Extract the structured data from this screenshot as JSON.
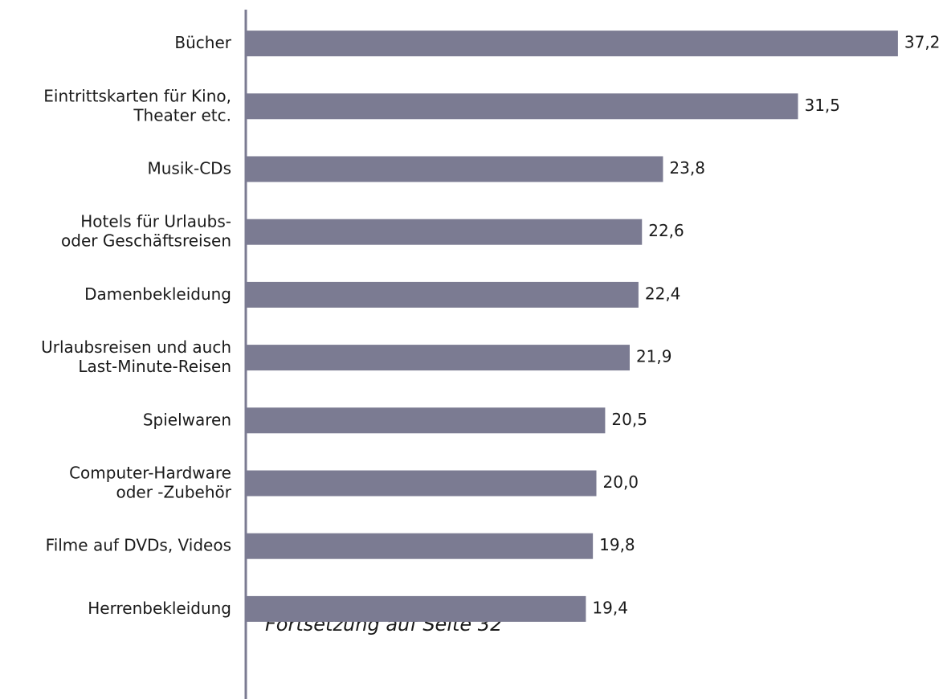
{
  "chart_data": {
    "type": "hbar",
    "categories": [
      "Bücher",
      "Eintrittskarten für Kino,\nTheater etc.",
      "Musik-CDs",
      "Hotels für Urlaubs-\noder Geschäftsreisen",
      "Damenbekleidung",
      "Urlaubsreisen und auch\nLast-Minute-Reisen",
      "Spielwaren",
      "Computer-Hardware\noder -Zubehör",
      "Filme auf DVDs, Videos",
      "Herrenbekleidung"
    ],
    "values": [
      37.2,
      31.5,
      23.8,
      22.6,
      22.4,
      21.9,
      20.5,
      20.0,
      19.8,
      19.4
    ],
    "value_labels": [
      "37,2",
      "31,5",
      "23,8",
      "22,6",
      "22,4",
      "21,9",
      "20,5",
      "20,0",
      "19,8",
      "19,4"
    ],
    "color": "#7b7b92",
    "xlim": [
      0,
      40
    ],
    "annotation": "Fortsetzung auf Seite 32"
  }
}
